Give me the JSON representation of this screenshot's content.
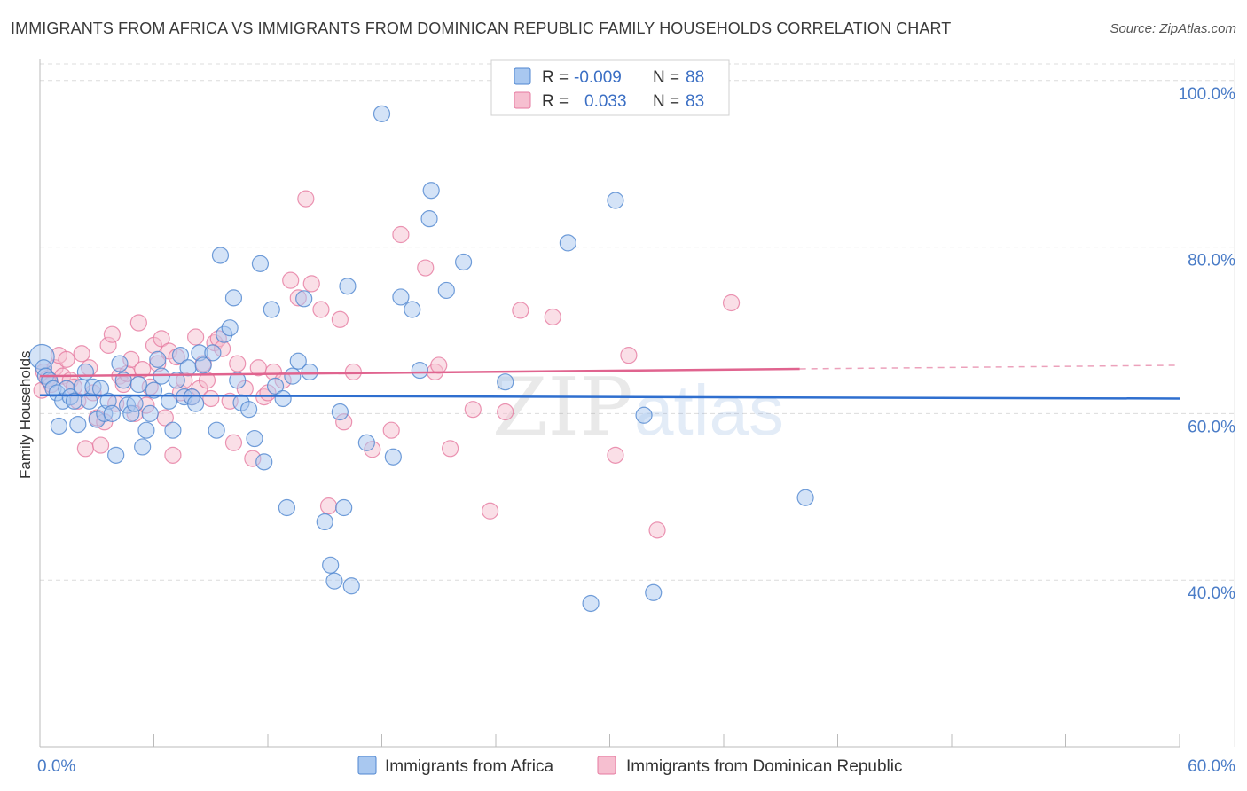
{
  "title": "IMMIGRANTS FROM AFRICA VS IMMIGRANTS FROM DOMINICAN REPUBLIC FAMILY HOUSEHOLDS CORRELATION CHART",
  "source": "Source: ZipAtlas.com",
  "watermark": {
    "zip": "ZIP",
    "atlas": "atlas"
  },
  "legend": {
    "r_label": "R =",
    "n_label": "N =",
    "rows": [
      {
        "r": "-0.009",
        "n": "88"
      },
      {
        "r": "0.033",
        "n": "83"
      }
    ]
  },
  "colors": {
    "blue_fill": "#a9c8f0",
    "blue_stroke": "#4f86d0",
    "blue_line": "#2f6fcf",
    "pink_fill": "#f6bfd0",
    "pink_stroke": "#e67aa0",
    "pink_line": "#e0648f",
    "grid": "#dcdcdc",
    "axis_label": "#4a7cc7"
  },
  "chart_data": {
    "type": "scatter",
    "title": "IMMIGRANTS FROM AFRICA VS IMMIGRANTS FROM DOMINICAN REPUBLIC FAMILY HOUSEHOLDS CORRELATION CHART",
    "xlabel": "",
    "ylabel": "Family Households",
    "xlim": [
      0,
      60
    ],
    "ylim": [
      20,
      102
    ],
    "x_tick_labels": [
      "0.0%",
      "60.0%"
    ],
    "y_ticks": [
      40,
      60,
      80,
      100
    ],
    "y_tick_labels": [
      "40.0%",
      "60.0%",
      "80.0%",
      "100.0%"
    ],
    "legend_position": "top-center",
    "series": [
      {
        "name": "Immigrants from Africa",
        "r": -0.009,
        "n": 88,
        "trend": {
          "x0": 0,
          "y0": 62.2,
          "x1": 60,
          "y1": 61.8,
          "dashed_from": null
        },
        "points": [
          [
            0.1,
            66.8
          ],
          [
            0.2,
            65.5
          ],
          [
            0.3,
            64.5
          ],
          [
            0.5,
            64.0
          ],
          [
            0.7,
            63.0
          ],
          [
            0.9,
            62.5
          ],
          [
            1.0,
            58.5
          ],
          [
            1.2,
            61.5
          ],
          [
            1.4,
            63.0
          ],
          [
            1.6,
            62.0
          ],
          [
            1.8,
            61.5
          ],
          [
            2.0,
            58.7
          ],
          [
            2.2,
            63.2
          ],
          [
            2.4,
            65.0
          ],
          [
            2.6,
            61.5
          ],
          [
            2.8,
            63.2
          ],
          [
            3.0,
            59.3
          ],
          [
            3.2,
            63.0
          ],
          [
            3.4,
            60.0
          ],
          [
            3.6,
            61.5
          ],
          [
            3.8,
            60.0
          ],
          [
            4.0,
            55.0
          ],
          [
            4.2,
            66.0
          ],
          [
            4.4,
            64.0
          ],
          [
            4.6,
            61.0
          ],
          [
            4.8,
            60.0
          ],
          [
            5.0,
            61.2
          ],
          [
            5.2,
            63.5
          ],
          [
            5.4,
            56.0
          ],
          [
            5.6,
            58.0
          ],
          [
            5.8,
            60.0
          ],
          [
            6.0,
            62.8
          ],
          [
            6.2,
            66.5
          ],
          [
            6.4,
            64.5
          ],
          [
            6.8,
            61.5
          ],
          [
            7.0,
            58.0
          ],
          [
            7.2,
            64.0
          ],
          [
            7.4,
            67.0
          ],
          [
            7.6,
            62.0
          ],
          [
            7.8,
            65.5
          ],
          [
            8.0,
            62.0
          ],
          [
            8.2,
            61.2
          ],
          [
            8.4,
            67.3
          ],
          [
            8.6,
            65.8
          ],
          [
            9.1,
            67.3
          ],
          [
            9.3,
            58.0
          ],
          [
            9.5,
            79.0
          ],
          [
            9.7,
            69.5
          ],
          [
            10.0,
            70.3
          ],
          [
            10.2,
            73.9
          ],
          [
            10.4,
            64.0
          ],
          [
            10.6,
            61.3
          ],
          [
            11.0,
            60.5
          ],
          [
            11.3,
            57.0
          ],
          [
            11.6,
            78.0
          ],
          [
            11.8,
            54.2
          ],
          [
            12.2,
            72.5
          ],
          [
            12.4,
            63.3
          ],
          [
            12.8,
            61.8
          ],
          [
            13.0,
            48.7
          ],
          [
            13.3,
            64.5
          ],
          [
            13.6,
            66.3
          ],
          [
            13.9,
            73.8
          ],
          [
            14.2,
            65.0
          ],
          [
            15.0,
            47.0
          ],
          [
            15.3,
            41.8
          ],
          [
            15.5,
            39.9
          ],
          [
            15.8,
            60.2
          ],
          [
            16.2,
            75.3
          ],
          [
            16.4,
            39.3
          ],
          [
            17.2,
            56.5
          ],
          [
            18.0,
            96.0
          ],
          [
            18.6,
            54.8
          ],
          [
            19.0,
            74.0
          ],
          [
            19.6,
            72.5
          ],
          [
            20.0,
            65.2
          ],
          [
            20.5,
            83.4
          ],
          [
            20.6,
            86.8
          ],
          [
            21.4,
            74.8
          ],
          [
            22.3,
            78.2
          ],
          [
            24.5,
            63.8
          ],
          [
            27.8,
            80.5
          ],
          [
            29.0,
            37.2
          ],
          [
            30.3,
            85.6
          ],
          [
            31.8,
            59.8
          ],
          [
            32.3,
            38.5
          ],
          [
            40.3,
            49.9
          ],
          [
            16.0,
            48.7
          ]
        ]
      },
      {
        "name": "Immigrants from Dominican Republic",
        "r": 0.033,
        "n": 83,
        "trend": {
          "x0": 0,
          "y0": 64.5,
          "x1": 60,
          "y1": 65.8,
          "dashed_from": 40
        },
        "points": [
          [
            0.1,
            62.8
          ],
          [
            0.2,
            65.0
          ],
          [
            0.4,
            64.2
          ],
          [
            0.6,
            63.5
          ],
          [
            0.8,
            65.5
          ],
          [
            1.0,
            67.0
          ],
          [
            1.2,
            64.5
          ],
          [
            1.4,
            66.5
          ],
          [
            1.6,
            64.0
          ],
          [
            1.8,
            63.2
          ],
          [
            2.0,
            61.5
          ],
          [
            2.2,
            67.2
          ],
          [
            2.4,
            55.8
          ],
          [
            2.6,
            65.5
          ],
          [
            2.8,
            62.5
          ],
          [
            3.0,
            59.5
          ],
          [
            3.2,
            56.2
          ],
          [
            3.4,
            59.0
          ],
          [
            3.6,
            68.2
          ],
          [
            3.8,
            69.5
          ],
          [
            4.0,
            61.2
          ],
          [
            4.2,
            64.5
          ],
          [
            4.4,
            63.5
          ],
          [
            4.6,
            64.8
          ],
          [
            4.8,
            66.5
          ],
          [
            5.0,
            60.0
          ],
          [
            5.2,
            70.9
          ],
          [
            5.4,
            65.3
          ],
          [
            5.6,
            61.0
          ],
          [
            5.8,
            63.2
          ],
          [
            6.0,
            68.2
          ],
          [
            6.2,
            66.0
          ],
          [
            6.4,
            69.0
          ],
          [
            6.6,
            59.5
          ],
          [
            6.8,
            67.5
          ],
          [
            7.0,
            55.0
          ],
          [
            7.2,
            66.8
          ],
          [
            7.4,
            62.5
          ],
          [
            7.6,
            64.0
          ],
          [
            8.0,
            62.0
          ],
          [
            8.2,
            69.2
          ],
          [
            8.4,
            63.0
          ],
          [
            8.6,
            66.0
          ],
          [
            8.8,
            64.0
          ],
          [
            9.0,
            61.8
          ],
          [
            9.2,
            68.5
          ],
          [
            9.4,
            69.0
          ],
          [
            9.6,
            67.8
          ],
          [
            10.0,
            61.5
          ],
          [
            10.2,
            56.5
          ],
          [
            10.4,
            66.0
          ],
          [
            10.8,
            63.0
          ],
          [
            11.2,
            54.6
          ],
          [
            11.5,
            65.5
          ],
          [
            11.8,
            62.0
          ],
          [
            12.0,
            62.5
          ],
          [
            12.3,
            65.0
          ],
          [
            12.8,
            64.0
          ],
          [
            13.2,
            76.0
          ],
          [
            13.6,
            73.9
          ],
          [
            14.0,
            85.8
          ],
          [
            14.3,
            75.6
          ],
          [
            14.8,
            72.5
          ],
          [
            15.2,
            48.9
          ],
          [
            15.8,
            71.3
          ],
          [
            16.0,
            59.0
          ],
          [
            16.5,
            65.0
          ],
          [
            17.5,
            55.7
          ],
          [
            18.5,
            58.0
          ],
          [
            19.0,
            81.5
          ],
          [
            20.3,
            77.5
          ],
          [
            20.8,
            65.0
          ],
          [
            21.0,
            65.8
          ],
          [
            21.6,
            55.8
          ],
          [
            22.8,
            60.5
          ],
          [
            23.7,
            48.3
          ],
          [
            24.5,
            60.2
          ],
          [
            25.3,
            72.4
          ],
          [
            27.0,
            71.6
          ],
          [
            30.3,
            55.0
          ],
          [
            31.0,
            67.0
          ],
          [
            32.5,
            46.0
          ],
          [
            36.4,
            73.3
          ]
        ]
      }
    ]
  },
  "bottom_legend": [
    {
      "label": "Immigrants from Africa"
    },
    {
      "label": "Immigrants from Dominican Republic"
    }
  ]
}
